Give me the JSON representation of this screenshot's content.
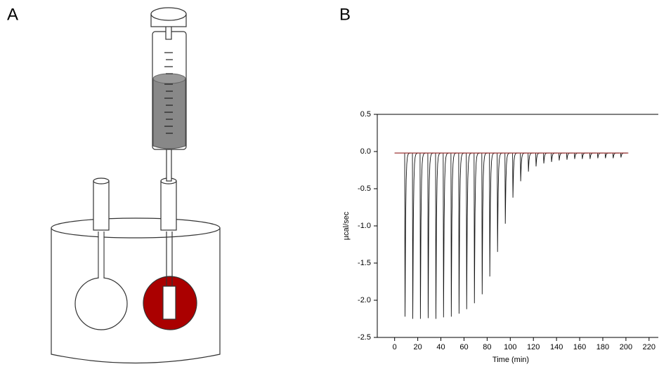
{
  "panel_labels": [
    "A",
    "B"
  ],
  "chart_data": {
    "type": "thermogram",
    "x_label": "Time (min)",
    "y_label": "µcal/sec",
    "x": [
      9,
      15.7,
      22.3,
      29,
      35.7,
      42.3,
      49,
      55.7,
      62.3,
      69,
      75.7,
      82.3,
      89,
      95.7,
      102.3,
      109,
      115.7,
      122.3,
      129,
      135.7,
      142.3,
      149,
      155.7,
      162.3,
      169,
      175.7,
      182.3,
      189,
      195.7
    ],
    "values": [
      -2.22,
      -2.25,
      -2.25,
      -2.24,
      -2.25,
      -2.23,
      -2.22,
      -2.18,
      -2.12,
      -2.04,
      -1.92,
      -1.68,
      -1.35,
      -0.97,
      -0.62,
      -0.4,
      -0.27,
      -0.2,
      -0.16,
      -0.14,
      -0.12,
      -0.11,
      -0.1,
      -0.1,
      -0.1,
      -0.09,
      -0.09,
      -0.09,
      -0.08
    ],
    "color": "#111111",
    "baseline": {
      "value": -0.02,
      "start": 0,
      "end": 202,
      "color": "#b03030"
    },
    "xlim": [
      -15,
      228
    ],
    "ylim": [
      -2.5,
      0.5
    ],
    "xticks": [
      0,
      20,
      40,
      60,
      80,
      100,
      120,
      140,
      160,
      180,
      200,
      220
    ],
    "yticks": [
      0.5,
      {
        "value": 0,
        "label": "0.0"
      },
      -0.5,
      {
        "value": -1,
        "label": "-1.0"
      },
      -1.5,
      {
        "value": -2,
        "label": "-2.0"
      },
      -2.5
    ]
  }
}
